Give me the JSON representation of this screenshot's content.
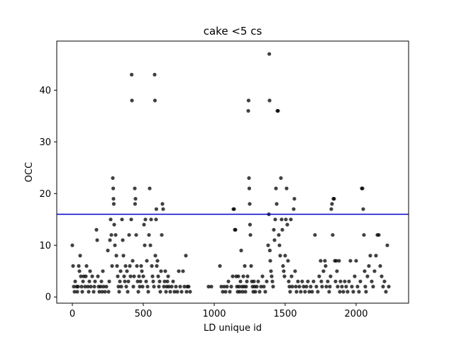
{
  "chart_data": {
    "type": "scatter",
    "title": "cake <5 cs",
    "xlabel": "LD unique id",
    "ylabel": "OCC",
    "xlim": [
      -110,
      2370
    ],
    "ylim": [
      -1.2,
      49.5
    ],
    "xticks": [
      0,
      500,
      1000,
      1500,
      2000
    ],
    "yticks": [
      0,
      10,
      20,
      30,
      40
    ],
    "grid": false,
    "legend": "none",
    "point_color": "#000000",
    "reference_line": {
      "y": 16,
      "color": "#0000cc"
    },
    "series": [
      {
        "points": [
          [
            0,
            10
          ],
          [
            5,
            6
          ],
          [
            10,
            2
          ],
          [
            15,
            1
          ],
          [
            20,
            3
          ],
          [
            30,
            2
          ],
          [
            35,
            1
          ],
          [
            40,
            2
          ],
          [
            45,
            6
          ],
          [
            50,
            5
          ],
          [
            55,
            8
          ],
          [
            60,
            4
          ],
          [
            65,
            2
          ],
          [
            70,
            1
          ],
          [
            75,
            3
          ],
          [
            80,
            4
          ],
          [
            90,
            2
          ],
          [
            95,
            4
          ],
          [
            100,
            6
          ],
          [
            110,
            2
          ],
          [
            115,
            1
          ],
          [
            120,
            3
          ],
          [
            125,
            5
          ],
          [
            130,
            2
          ],
          [
            140,
            4
          ],
          [
            150,
            1
          ],
          [
            155,
            2
          ],
          [
            160,
            3
          ],
          [
            170,
            13
          ],
          [
            175,
            11
          ],
          [
            180,
            4
          ],
          [
            185,
            2
          ],
          [
            190,
            1
          ],
          [
            200,
            2
          ],
          [
            205,
            3
          ],
          [
            210,
            1
          ],
          [
            215,
            5
          ],
          [
            220,
            2
          ],
          [
            230,
            1
          ],
          [
            240,
            2
          ],
          [
            250,
            9
          ],
          [
            255,
            1
          ],
          [
            260,
            3
          ],
          [
            265,
            11
          ],
          [
            270,
            15
          ],
          [
            275,
            12
          ],
          [
            280,
            6
          ],
          [
            285,
            23
          ],
          [
            288,
            21
          ],
          [
            290,
            19
          ],
          [
            292,
            18
          ],
          [
            295,
            14
          ],
          [
            300,
            10
          ],
          [
            305,
            12
          ],
          [
            310,
            8
          ],
          [
            315,
            6
          ],
          [
            320,
            4
          ],
          [
            325,
            2
          ],
          [
            330,
            1
          ],
          [
            335,
            3
          ],
          [
            340,
            5
          ],
          [
            345,
            2
          ],
          [
            350,
            15
          ],
          [
            355,
            11
          ],
          [
            360,
            8
          ],
          [
            365,
            4
          ],
          [
            370,
            3
          ],
          [
            375,
            6
          ],
          [
            380,
            2
          ],
          [
            385,
            5
          ],
          [
            390,
            1
          ],
          [
            395,
            3
          ],
          [
            400,
            12
          ],
          [
            405,
            6
          ],
          [
            410,
            4
          ],
          [
            415,
            15
          ],
          [
            418,
            43
          ],
          [
            420,
            38
          ],
          [
            425,
            7
          ],
          [
            430,
            2
          ],
          [
            435,
            4
          ],
          [
            440,
            21
          ],
          [
            442,
            18
          ],
          [
            445,
            19
          ],
          [
            450,
            12
          ],
          [
            455,
            6
          ],
          [
            460,
            3
          ],
          [
            465,
            1
          ],
          [
            470,
            4
          ],
          [
            475,
            2
          ],
          [
            480,
            3
          ],
          [
            485,
            6
          ],
          [
            490,
            5
          ],
          [
            495,
            2
          ],
          [
            500,
            4
          ],
          [
            505,
            14
          ],
          [
            510,
            10
          ],
          [
            515,
            15
          ],
          [
            520,
            3
          ],
          [
            525,
            7
          ],
          [
            530,
            2
          ],
          [
            535,
            1
          ],
          [
            540,
            12
          ],
          [
            545,
            21
          ],
          [
            550,
            10
          ],
          [
            555,
            15
          ],
          [
            560,
            6
          ],
          [
            565,
            4
          ],
          [
            570,
            3
          ],
          [
            575,
            2
          ],
          [
            580,
            43
          ],
          [
            582,
            38
          ],
          [
            585,
            8
          ],
          [
            590,
            15
          ],
          [
            592,
            17
          ],
          [
            595,
            6
          ],
          [
            600,
            7
          ],
          [
            605,
            4
          ],
          [
            610,
            2
          ],
          [
            615,
            3
          ],
          [
            620,
            1
          ],
          [
            625,
            5
          ],
          [
            630,
            12
          ],
          [
            635,
            18
          ],
          [
            640,
            17
          ],
          [
            645,
            2
          ],
          [
            650,
            3
          ],
          [
            655,
            5
          ],
          [
            660,
            1
          ],
          [
            665,
            2
          ],
          [
            670,
            3
          ],
          [
            675,
            4
          ],
          [
            680,
            2
          ],
          [
            690,
            1
          ],
          [
            700,
            2
          ],
          [
            710,
            3
          ],
          [
            720,
            1
          ],
          [
            730,
            2
          ],
          [
            740,
            1
          ],
          [
            750,
            5
          ],
          [
            760,
            2
          ],
          [
            770,
            1
          ],
          [
            780,
            5
          ],
          [
            790,
            2
          ],
          [
            800,
            8
          ],
          [
            805,
            1
          ],
          [
            810,
            2
          ],
          [
            820,
            2
          ],
          [
            830,
            1
          ],
          [
            960,
            2
          ],
          [
            980,
            2
          ],
          [
            1040,
            6
          ],
          [
            1050,
            2
          ],
          [
            1060,
            1
          ],
          [
            1070,
            2
          ],
          [
            1080,
            1
          ],
          [
            1090,
            2
          ],
          [
            1100,
            3
          ],
          [
            1110,
            1
          ],
          [
            1120,
            2
          ],
          [
            1130,
            4
          ],
          [
            1135,
            17
          ],
          [
            1140,
            17
          ],
          [
            1145,
            13
          ],
          [
            1150,
            13
          ],
          [
            1155,
            4
          ],
          [
            1160,
            2
          ],
          [
            1165,
            1
          ],
          [
            1170,
            4
          ],
          [
            1175,
            2
          ],
          [
            1180,
            1
          ],
          [
            1185,
            3
          ],
          [
            1190,
            9
          ],
          [
            1195,
            2
          ],
          [
            1200,
            1
          ],
          [
            1205,
            4
          ],
          [
            1210,
            2
          ],
          [
            1215,
            6
          ],
          [
            1220,
            1
          ],
          [
            1225,
            2
          ],
          [
            1230,
            3
          ],
          [
            1235,
            4
          ],
          [
            1240,
            36
          ],
          [
            1242,
            38
          ],
          [
            1245,
            23
          ],
          [
            1247,
            21
          ],
          [
            1250,
            18
          ],
          [
            1252,
            14
          ],
          [
            1255,
            12
          ],
          [
            1260,
            6
          ],
          [
            1265,
            3
          ],
          [
            1270,
            2
          ],
          [
            1275,
            1
          ],
          [
            1280,
            3
          ],
          [
            1285,
            2
          ],
          [
            1290,
            1
          ],
          [
            1300,
            2
          ],
          [
            1310,
            3
          ],
          [
            1320,
            1
          ],
          [
            1330,
            2
          ],
          [
            1340,
            4
          ],
          [
            1350,
            2
          ],
          [
            1360,
            1
          ],
          [
            1370,
            3
          ],
          [
            1380,
            10
          ],
          [
            1385,
            16
          ],
          [
            1388,
            47
          ],
          [
            1390,
            38
          ],
          [
            1392,
            9
          ],
          [
            1395,
            7
          ],
          [
            1400,
            5
          ],
          [
            1405,
            4
          ],
          [
            1410,
            3
          ],
          [
            1415,
            2
          ],
          [
            1420,
            13
          ],
          [
            1425,
            11
          ],
          [
            1430,
            15
          ],
          [
            1435,
            21
          ],
          [
            1440,
            18
          ],
          [
            1445,
            36
          ],
          [
            1450,
            36
          ],
          [
            1455,
            12
          ],
          [
            1460,
            10
          ],
          [
            1465,
            8
          ],
          [
            1470,
            23
          ],
          [
            1475,
            15
          ],
          [
            1480,
            13
          ],
          [
            1485,
            6
          ],
          [
            1490,
            5
          ],
          [
            1495,
            4
          ],
          [
            1500,
            8
          ],
          [
            1505,
            15
          ],
          [
            1510,
            21
          ],
          [
            1515,
            14
          ],
          [
            1520,
            7
          ],
          [
            1525,
            3
          ],
          [
            1530,
            2
          ],
          [
            1535,
            1
          ],
          [
            1540,
            15
          ],
          [
            1545,
            4
          ],
          [
            1550,
            2
          ],
          [
            1560,
            17
          ],
          [
            1565,
            19
          ],
          [
            1570,
            5
          ],
          [
            1575,
            2
          ],
          [
            1580,
            1
          ],
          [
            1590,
            3
          ],
          [
            1600,
            2
          ],
          [
            1610,
            1
          ],
          [
            1620,
            3
          ],
          [
            1630,
            2
          ],
          [
            1640,
            1
          ],
          [
            1650,
            2
          ],
          [
            1660,
            3
          ],
          [
            1670,
            1
          ],
          [
            1680,
            2
          ],
          [
            1690,
            1
          ],
          [
            1700,
            3
          ],
          [
            1710,
            12
          ],
          [
            1720,
            2
          ],
          [
            1730,
            1
          ],
          [
            1740,
            4
          ],
          [
            1750,
            7
          ],
          [
            1755,
            3
          ],
          [
            1760,
            2
          ],
          [
            1770,
            5
          ],
          [
            1780,
            7
          ],
          [
            1785,
            6
          ],
          [
            1790,
            2
          ],
          [
            1800,
            3
          ],
          [
            1810,
            1
          ],
          [
            1815,
            2
          ],
          [
            1820,
            4
          ],
          [
            1825,
            17
          ],
          [
            1830,
            18
          ],
          [
            1835,
            12
          ],
          [
            1840,
            19
          ],
          [
            1845,
            19
          ],
          [
            1850,
            7
          ],
          [
            1855,
            3
          ],
          [
            1860,
            7
          ],
          [
            1865,
            5
          ],
          [
            1870,
            2
          ],
          [
            1880,
            7
          ],
          [
            1885,
            1
          ],
          [
            1890,
            3
          ],
          [
            1900,
            2
          ],
          [
            1910,
            1
          ],
          [
            1920,
            3
          ],
          [
            1930,
            2
          ],
          [
            1940,
            1
          ],
          [
            1950,
            3
          ],
          [
            1960,
            7
          ],
          [
            1970,
            2
          ],
          [
            1980,
            1
          ],
          [
            1990,
            4
          ],
          [
            2000,
            7
          ],
          [
            2010,
            2
          ],
          [
            2020,
            1
          ],
          [
            2030,
            3
          ],
          [
            2040,
            21
          ],
          [
            2045,
            21
          ],
          [
            2050,
            17
          ],
          [
            2055,
            12
          ],
          [
            2060,
            5
          ],
          [
            2065,
            2
          ],
          [
            2070,
            1
          ],
          [
            2080,
            4
          ],
          [
            2090,
            6
          ],
          [
            2100,
            8
          ],
          [
            2110,
            3
          ],
          [
            2120,
            2
          ],
          [
            2130,
            5
          ],
          [
            2140,
            8
          ],
          [
            2150,
            12
          ],
          [
            2160,
            12
          ],
          [
            2170,
            6
          ],
          [
            2180,
            4
          ],
          [
            2190,
            2
          ],
          [
            2200,
            3
          ],
          [
            2210,
            1
          ],
          [
            2220,
            10
          ],
          [
            2230,
            2
          ]
        ]
      }
    ]
  }
}
